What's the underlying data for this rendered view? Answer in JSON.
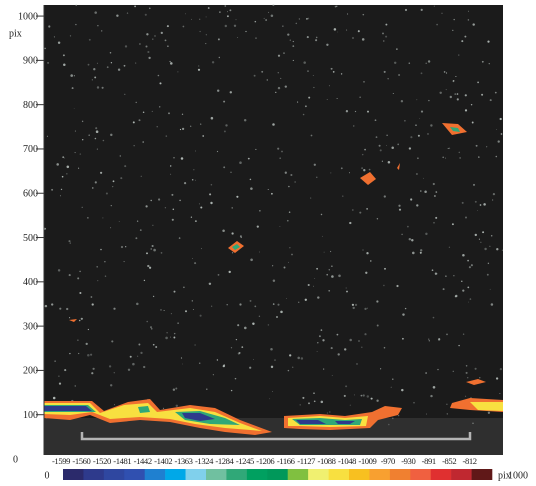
{
  "chart_data": {
    "type": "contour",
    "y_label": "pix",
    "x_label": "pix",
    "ylim": [
      0,
      1025
    ],
    "yticks": [
      0,
      100,
      200,
      300,
      400,
      500,
      600,
      700,
      800,
      900,
      1000
    ],
    "xlim": [
      0,
      1000
    ],
    "xticks": [
      0,
      1000
    ],
    "colorbar": {
      "levels": [
        -1599,
        -1560,
        -1520,
        -1481,
        -1442,
        -1402,
        -1363,
        -1324,
        -1284,
        -1245,
        -1206,
        -1166,
        -1127,
        -1088,
        -1048,
        -1009,
        -970,
        -930,
        -891,
        -852,
        -812
      ],
      "colors": [
        "#2b2a6b",
        "#2e3a8c",
        "#2f47a0",
        "#3050b0",
        "#1f80d0",
        "#00a8e8",
        "#80d0ec",
        "#70c0a0",
        "#30a878",
        "#00a060",
        "#00985a",
        "#80c040",
        "#f0f070",
        "#f8e040",
        "#f8c020",
        "#f8a030",
        "#f08030",
        "#f06040",
        "#e03030",
        "#c02830",
        "#601818"
      ]
    }
  }
}
